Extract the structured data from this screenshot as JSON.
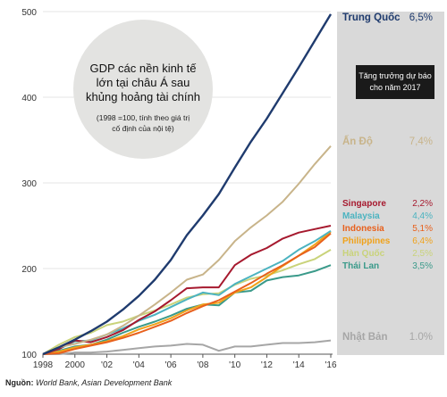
{
  "chart_data": {
    "type": "line",
    "title": "GDP các nền kinh tế lớn tại châu Á sau khủng hoảng tài chính",
    "subtitle": "(1998 =100, tính theo giá trị cố định của nội tệ)",
    "title_lines": [
      "GDP các nền kinh tế",
      "lớn tại châu Á sau",
      "khủng hoảng tài chính"
    ],
    "subtitle_lines": [
      "(1998 =100, tính theo giá trị",
      "cố định của nội tệ)"
    ],
    "forecast_label_lines": [
      "Tăng trưởng dự báo",
      "cho năm 2017"
    ],
    "x": [
      1998,
      1999,
      2000,
      2001,
      2002,
      2003,
      2004,
      2005,
      2006,
      2007,
      2008,
      2009,
      2010,
      2011,
      2012,
      2013,
      2014,
      2015,
      2016
    ],
    "x_tick_labels": [
      "1998",
      "2000",
      "'02",
      "'04",
      "'06",
      "'08",
      "'10",
      "'12",
      "'14",
      "'16"
    ],
    "x_tick_values": [
      1998,
      2000,
      2002,
      2004,
      2006,
      2008,
      2010,
      2012,
      2014,
      2016
    ],
    "y_ticks": [
      100,
      200,
      300,
      400,
      500
    ],
    "ylim": [
      100,
      500
    ],
    "xlim": [
      1998,
      2016
    ],
    "series": [
      {
        "name": "Nhật Bản",
        "growth": "1.0%",
        "color": "#a6a6a6",
        "values": [
          100,
          100,
          102,
          102,
          103,
          105,
          107,
          109,
          110,
          112,
          111,
          104,
          109,
          109,
          111,
          113,
          113,
          114,
          116
        ]
      },
      {
        "name": "Thái Lan",
        "growth": "3,5%",
        "color": "#3a9a8a",
        "values": [
          100,
          104,
          109,
          111,
          117,
          125,
          132,
          138,
          145,
          153,
          158,
          157,
          172,
          174,
          186,
          190,
          192,
          197,
          204
        ]
      },
      {
        "name": "Hàn Quốc",
        "growth": "2,5%",
        "color": "#c9d37a",
        "values": [
          100,
          111,
          120,
          125,
          134,
          138,
          145,
          151,
          158,
          166,
          170,
          171,
          181,
          188,
          192,
          198,
          205,
          211,
          222
        ]
      },
      {
        "name": "Philippines",
        "growth": "6,4%",
        "color": "#f0a21a",
        "values": [
          100,
          103,
          108,
          111,
          115,
          121,
          129,
          135,
          142,
          151,
          158,
          160,
          172,
          178,
          190,
          203,
          215,
          228,
          243
        ]
      },
      {
        "name": "Indonesia",
        "growth": "5,1%",
        "color": "#e8601c",
        "values": [
          100,
          101,
          106,
          110,
          114,
          119,
          125,
          132,
          139,
          148,
          156,
          163,
          173,
          183,
          194,
          204,
          215,
          225,
          241
        ]
      },
      {
        "name": "Malaysia",
        "growth": "4,4%",
        "color": "#4bb3c0",
        "values": [
          100,
          106,
          115,
          116,
          123,
          130,
          139,
          146,
          155,
          164,
          172,
          169,
          182,
          191,
          200,
          209,
          222,
          232,
          244
        ]
      },
      {
        "name": "Singapore",
        "growth": "2,2%",
        "color": "#a6192e",
        "values": [
          100,
          106,
          116,
          114,
          120,
          128,
          140,
          150,
          163,
          177,
          178,
          178,
          204,
          216,
          224,
          235,
          242,
          246,
          250
        ]
      },
      {
        "name": "Ấn Độ",
        "growth": "7,4%",
        "color": "#c8b48a",
        "values": [
          100,
          108,
          112,
          117,
          123,
          133,
          145,
          158,
          172,
          187,
          193,
          210,
          232,
          248,
          262,
          278,
          299,
          322,
          343
        ]
      },
      {
        "name": "Trung Quốc",
        "growth": "6,5%",
        "color": "#1f3b6e",
        "values": [
          100,
          108,
          117,
          127,
          138,
          152,
          168,
          187,
          210,
          239,
          262,
          287,
          318,
          348,
          375,
          405,
          435,
          466,
          497
        ]
      }
    ],
    "source_label": "Nguồn:",
    "source_text": "World Bank, Asian Development Bank"
  }
}
